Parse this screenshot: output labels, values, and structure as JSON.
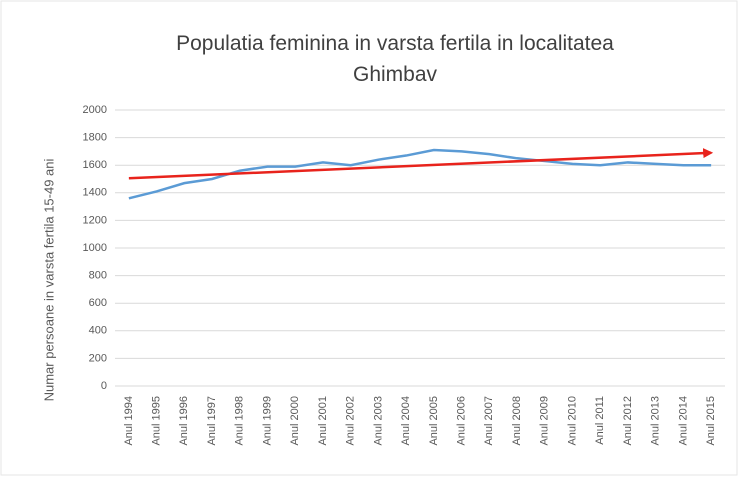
{
  "chart_data": {
    "type": "line",
    "title": "Populatia feminina in varsta fertila in localitatea Ghimbav",
    "y_label": "Numar persoane in varsta fertila 15-49 ani",
    "categories": [
      "Anul 1994",
      "Anul 1995",
      "Anul 1996",
      "Anul 1997",
      "Anul 1998",
      "Anul 1999",
      "Anul 2000",
      "Anul 2001",
      "Anul 2002",
      "Anul 2003",
      "Anul 2004",
      "Anul 2005",
      "Anul 2006",
      "Anul 2007",
      "Anul 2008",
      "Anul 2009",
      "Anul 2010",
      "Anul 2011",
      "Anul 2012",
      "Anul 2013",
      "Anul 2014",
      "Anul 2015"
    ],
    "series": [
      {
        "color": "#5b9bd5",
        "values": [
          1360,
          1410,
          1470,
          1500,
          1560,
          1590,
          1590,
          1620,
          1600,
          1640,
          1670,
          1710,
          1700,
          1680,
          1650,
          1630,
          1610,
          1600,
          1620,
          1610,
          1600,
          1600
        ]
      }
    ],
    "trendline": {
      "color": "#e8231c",
      "start": 1505,
      "end": 1690
    },
    "ylim": [
      0,
      2000
    ],
    "yticks": [
      0,
      200,
      400,
      600,
      800,
      1000,
      1200,
      1400,
      1600,
      1800,
      2000
    ],
    "grid": true
  }
}
